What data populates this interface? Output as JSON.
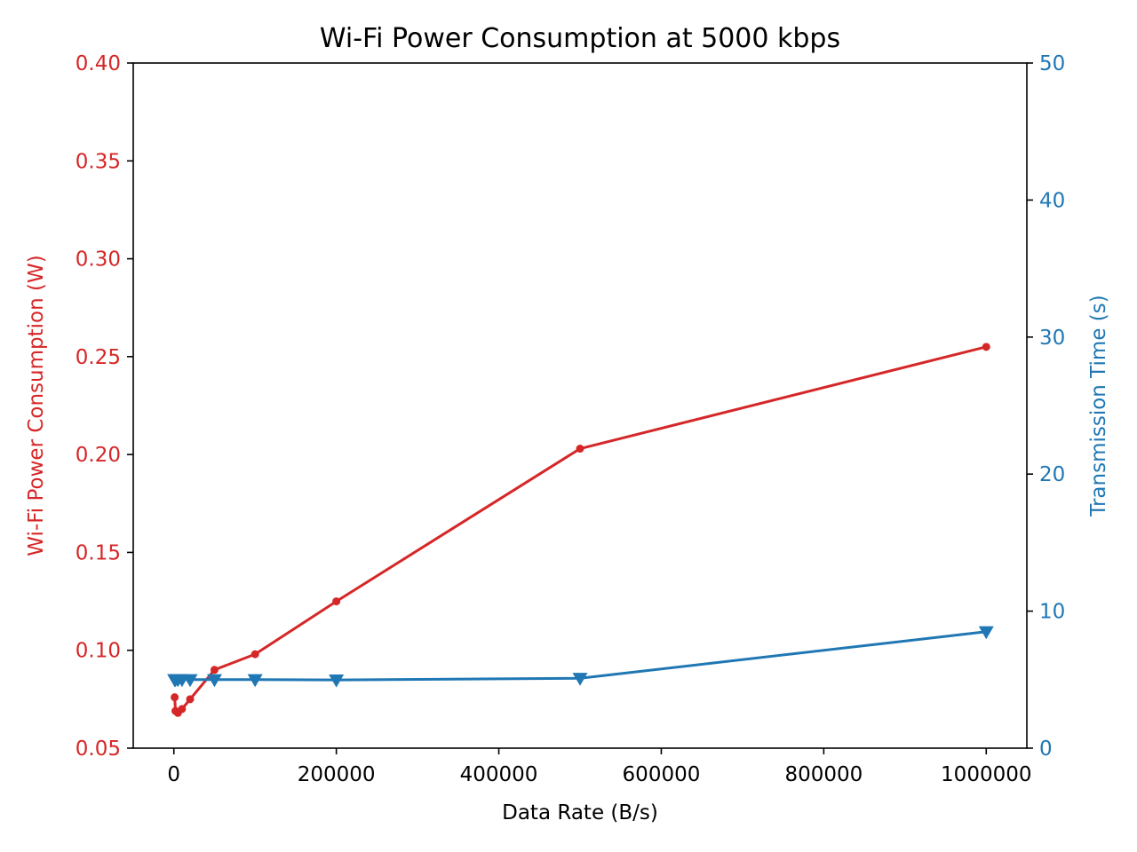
{
  "chart_data": {
    "type": "line",
    "title": "Wi-Fi Power Consumption at 5000 kbps",
    "xlabel": "Data Rate (B/s)",
    "ylabel_left": "Wi-Fi Power Consumption (W)",
    "ylabel_right": "Transmission Time (s)",
    "xlim": [
      -50000,
      1050000
    ],
    "ylim_left": [
      0.05,
      0.4
    ],
    "ylim_right": [
      0,
      50
    ],
    "x_ticks": [
      0,
      200000,
      400000,
      600000,
      800000,
      1000000
    ],
    "x_tick_labels": [
      "0",
      "200000",
      "400000",
      "600000",
      "800000",
      "1000000"
    ],
    "y_left_ticks": [
      0.05,
      0.1,
      0.15,
      0.2,
      0.25,
      0.3,
      0.35,
      0.4
    ],
    "y_left_tick_labels": [
      "0.05",
      "0.10",
      "0.15",
      "0.20",
      "0.25",
      "0.30",
      "0.35",
      "0.40"
    ],
    "y_right_ticks": [
      0,
      10,
      20,
      30,
      40,
      50
    ],
    "y_right_tick_labels": [
      "0",
      "10",
      "20",
      "30",
      "40",
      "50"
    ],
    "grid": false,
    "colors": {
      "left": "#d62728",
      "right": "#1f77b4"
    },
    "series": [
      {
        "axis": "left",
        "marker": "circle",
        "color": "#d62728",
        "x": [
          1000,
          2000,
          5000,
          10000,
          20000,
          50000,
          100000,
          200000,
          500000,
          1000000
        ],
        "values": [
          0.076,
          0.069,
          0.068,
          0.07,
          0.075,
          0.09,
          0.098,
          0.125,
          0.203,
          0.255
        ]
      },
      {
        "axis": "right",
        "marker": "triangle-down",
        "color": "#1f77b4",
        "x": [
          1000,
          2000,
          5000,
          10000,
          20000,
          50000,
          100000,
          200000,
          500000,
          1000000
        ],
        "values": [
          5.0,
          5.0,
          5.0,
          5.0,
          5.0,
          5.0,
          5.0,
          4.98,
          5.1,
          8.5
        ]
      }
    ]
  }
}
